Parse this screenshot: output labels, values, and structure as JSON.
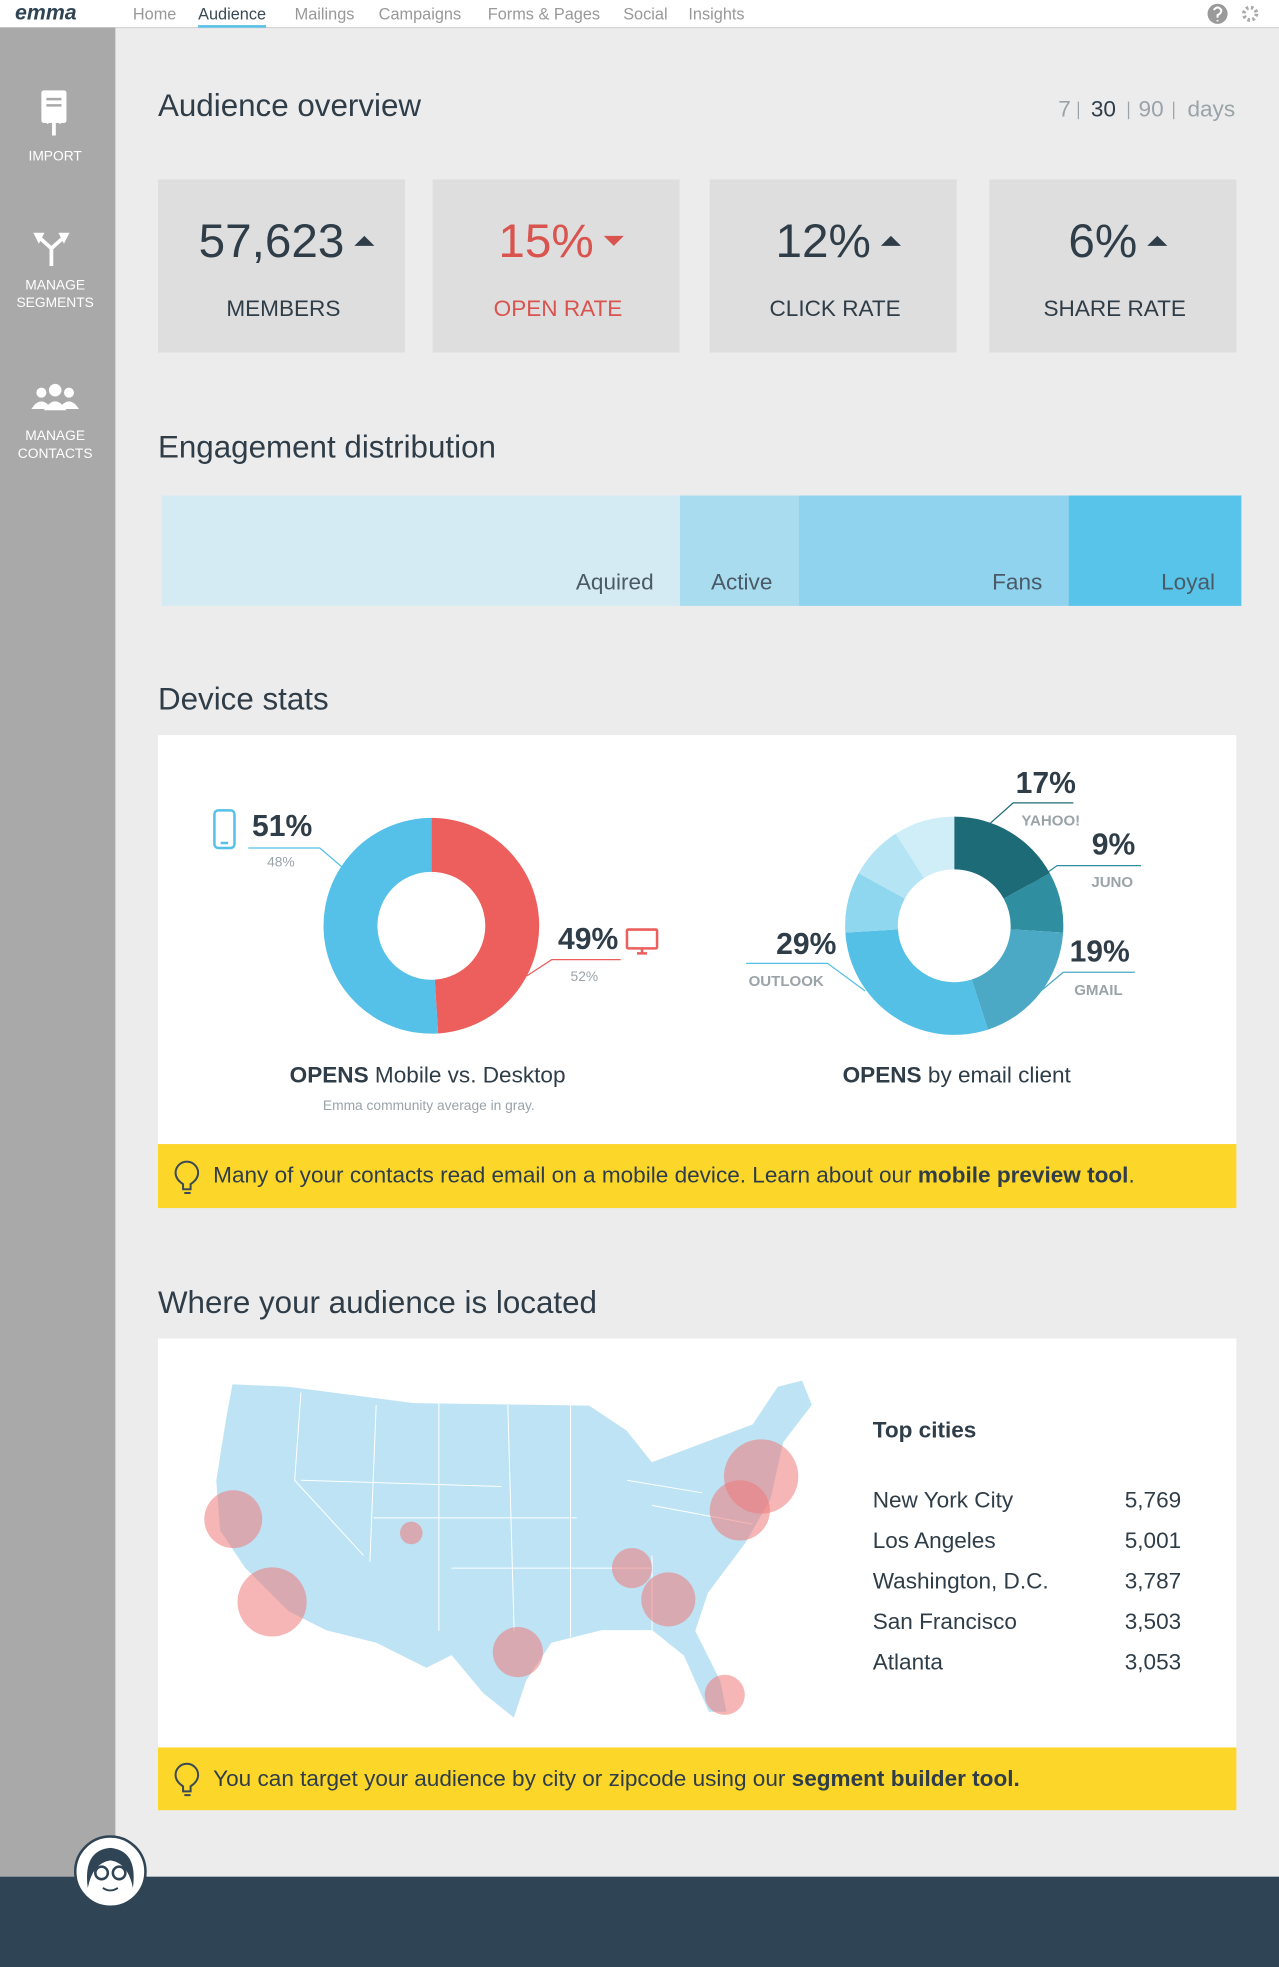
{
  "nav": {
    "logo": "emma",
    "items": [
      "Home",
      "Audience",
      "Mailings",
      "Campaigns",
      "Forms & Pages",
      "Social",
      "Insights"
    ],
    "active": "Audience"
  },
  "sidebar": [
    {
      "lines": [
        "IMPORT"
      ]
    },
    {
      "lines": [
        "MANAGE",
        "SEGMENTS"
      ]
    },
    {
      "lines": [
        "MANAGE",
        "CONTACTS"
      ]
    }
  ],
  "overview": {
    "title": "Audience overview",
    "periods": [
      7,
      30,
      90
    ],
    "period_unit": "days",
    "selected": 30,
    "stats": [
      {
        "value": "57,623",
        "label": "MEMBERS",
        "trend": "up"
      },
      {
        "value": "15%",
        "label": "OPEN RATE",
        "trend": "down"
      },
      {
        "value": "12%",
        "label": "CLICK RATE",
        "trend": "up"
      },
      {
        "value": "6%",
        "label": "SHARE RATE",
        "trend": "up"
      }
    ]
  },
  "engagement": {
    "title": "Engagement distribution",
    "segments": [
      {
        "label": "Aquired",
        "value": 48,
        "color": "#d4ebf3"
      },
      {
        "label": "Active",
        "value": 11,
        "color": "#a9dcee"
      },
      {
        "label": "Fans",
        "value": 25,
        "color": "#8fd3ee"
      },
      {
        "label": "Loyal",
        "value": 16,
        "color": "#58c4ea"
      }
    ]
  },
  "device_stats": {
    "title": "Device stats",
    "mobile_desktop": {
      "caption_bold": "OPENS",
      "caption": "Mobile vs. Desktop",
      "note": "Emma community average in gray.",
      "slices": [
        {
          "value": 49,
          "value_label": "49%",
          "average": "52%",
          "color": "#ec5f5d"
        },
        {
          "value": 51,
          "value_label": "51%",
          "average": "48%",
          "color": "#55c0e8"
        }
      ]
    },
    "email_client": {
      "caption_bold": "OPENS",
      "caption": "by email client",
      "slices": [
        {
          "label": "YAHOO!",
          "value": 17,
          "value_label": "17%",
          "color": "#1e6b78"
        },
        {
          "label": "JUNO",
          "value": 9,
          "value_label": "9%",
          "color": "#2f8ea0"
        },
        {
          "label": "GMAIL",
          "value": 19,
          "value_label": "19%",
          "color": "#4ba9c5"
        },
        {
          "label": "OUTLOOK",
          "value": 29,
          "value_label": "29%",
          "color": "#55c0e6"
        },
        {
          "label": null,
          "value": 9,
          "color": "#8fd6ef"
        },
        {
          "label": null,
          "value": 8,
          "color": "#b5e4f4"
        },
        {
          "label": null,
          "value": 9,
          "color": "#d0eef8"
        }
      ]
    },
    "tip": {
      "text": "Many of your contacts read email on a mobile device. Learn about our ",
      "link": "mobile preview tool",
      "end": "."
    }
  },
  "location": {
    "title": "Where your audience is located",
    "top_cities_title": "Top cities",
    "cities": [
      {
        "name": "New York City",
        "value": 5769,
        "value_label": "5,769"
      },
      {
        "name": "Los Angeles",
        "value": 5001,
        "value_label": "5,001"
      },
      {
        "name": "Washington, D.C.",
        "value": 3787,
        "value_label": "3,787"
      },
      {
        "name": "San Francisco",
        "value": 3503,
        "value_label": "3,503"
      },
      {
        "name": "Atlanta",
        "value": 3053,
        "value_label": "3,053"
      }
    ],
    "tip": {
      "text": "You can target your audience by city or zipcode using our ",
      "link": "segment builder tool."
    }
  }
}
